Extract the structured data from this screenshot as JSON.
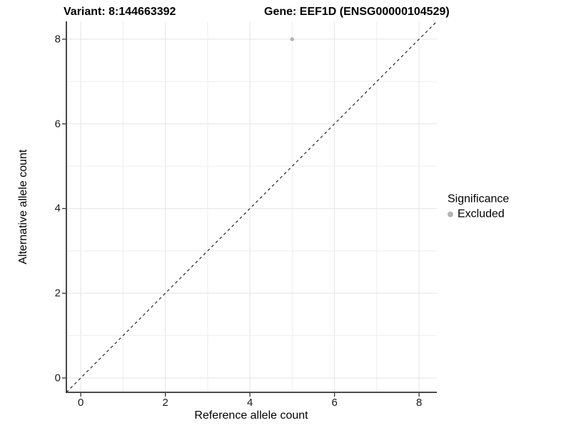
{
  "chart_data": {
    "type": "scatter",
    "title_left": "Variant: 8:144663392",
    "title_right": "Gene: EEF1D (ENSG00000104529)",
    "xlabel": "Reference allele count",
    "ylabel": "Alternative allele count",
    "xlim": [
      -0.34,
      8.42
    ],
    "ylim": [
      -0.34,
      8.42
    ],
    "xticks": [
      0,
      2,
      4,
      6,
      8
    ],
    "yticks": [
      0,
      2,
      4,
      6,
      8
    ],
    "minor_grid_step": 1,
    "grid": "on",
    "grid_color_major": "#e4e4e4",
    "grid_color_minor": "#eeeeee",
    "axis_color": "#333333",
    "identity_line": {
      "style": "dashed",
      "color": "#000000",
      "slope": 1,
      "span": "full-panel"
    },
    "series": [
      {
        "name": "Excluded",
        "color": "#b5b5b5",
        "marker": "circle",
        "points": [
          [
            5,
            8
          ]
        ]
      }
    ],
    "legend": {
      "title": "Significance",
      "position": "right",
      "items": [
        {
          "label": "Excluded",
          "color": "#b5b5b5",
          "marker": "circle"
        }
      ]
    }
  }
}
